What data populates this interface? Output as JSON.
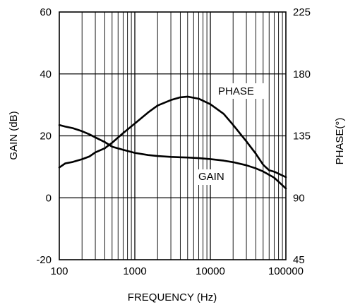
{
  "chart_data": {
    "type": "line",
    "xlabel": "FREQUENCY (Hz)",
    "ylabel": "GAIN (dB)",
    "y2label": "PHASE(°)",
    "xscale": "log",
    "xlim": [
      100,
      100000
    ],
    "ylim": [
      -20,
      60
    ],
    "y2lim": [
      45,
      225
    ],
    "grid": true,
    "x_tick_labels": [
      "100",
      "1000",
      "10000",
      "100000"
    ],
    "y_tick_labels": [
      "-20",
      "0",
      "20",
      "40",
      "60"
    ],
    "y2_tick_labels": [
      "45",
      "90",
      "135",
      "180",
      "225"
    ],
    "annotations": [
      "PHASE",
      "GAIN"
    ],
    "series": [
      {
        "name": "GAIN",
        "axis": "left",
        "x": [
          100,
          120,
          150,
          200,
          250,
          300,
          400,
          500,
          700,
          1000,
          1500,
          2000,
          3000,
          5000,
          7000,
          10000,
          15000,
          20000,
          30000,
          40000,
          50000,
          70000,
          100000
        ],
        "y": [
          23.5,
          23,
          22.5,
          21.5,
          20.5,
          19.5,
          18,
          16.5,
          15.5,
          14.5,
          13.8,
          13.5,
          13.2,
          13,
          12.8,
          12.5,
          12,
          11.5,
          10.5,
          9.5,
          8.5,
          6.5,
          3
        ]
      },
      {
        "name": "PHASE",
        "axis": "right",
        "x": [
          100,
          120,
          150,
          200,
          250,
          300,
          400,
          500,
          700,
          1000,
          1500,
          2000,
          3000,
          4000,
          5000,
          7000,
          10000,
          15000,
          20000,
          30000,
          40000,
          50000,
          60000,
          70000,
          100000
        ],
        "y": [
          112,
          115,
          116,
          118,
          120,
          123,
          126,
          130,
          137,
          144,
          152,
          157,
          161,
          163,
          163.5,
          162,
          158,
          151,
          143,
          131,
          122,
          114,
          110,
          109,
          105
        ]
      }
    ]
  }
}
